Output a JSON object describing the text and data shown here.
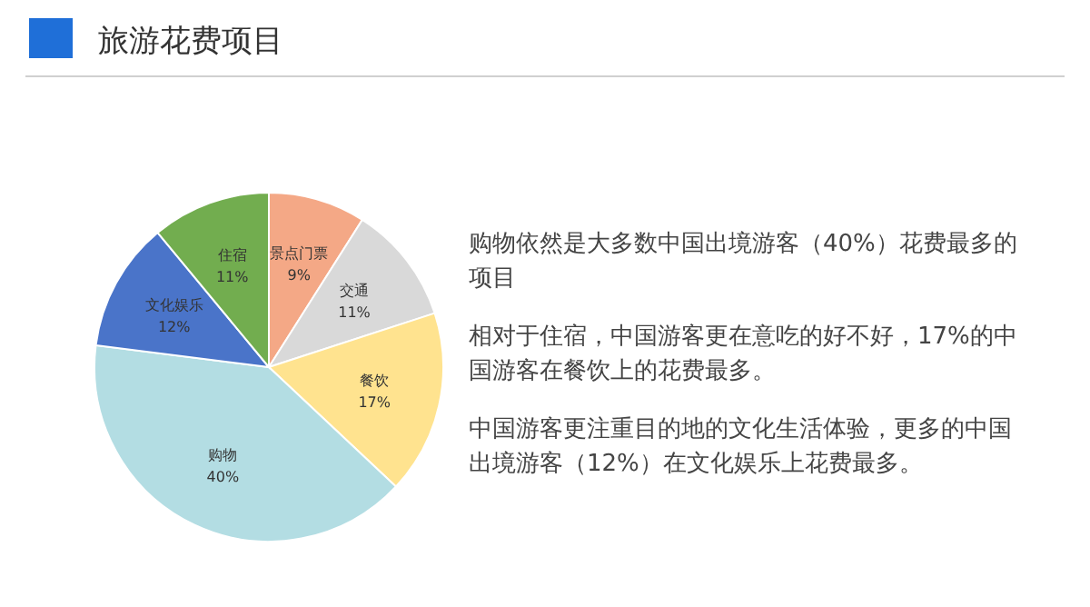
{
  "chart_data": {
    "type": "pie",
    "title": "旅游花费项目",
    "categories": [
      "景点门票",
      "交通",
      "餐饮",
      "购物",
      "文化娱乐",
      "住宿"
    ],
    "values": [
      9,
      11,
      17,
      40,
      12,
      11
    ],
    "value_labels": [
      "9%",
      "11%",
      "17%",
      "40%",
      "12%",
      "11%"
    ],
    "colors": [
      "#f4a886",
      "#d9d9d9",
      "#ffe38f",
      "#b3dde3",
      "#4a74c9",
      "#72ad4f"
    ],
    "annotations": [
      "购物依然是大多数中国出境游客（40%）花费最多的项目",
      "相对于住宿，中国游客更在意吃的好不好，17%的中国游客在餐饮上的花费最多。",
      "中国游客更注重目的地的文化生活体验，更多的中国出境游客（12%）在文化娱乐上花费最多。"
    ],
    "legend": false
  }
}
